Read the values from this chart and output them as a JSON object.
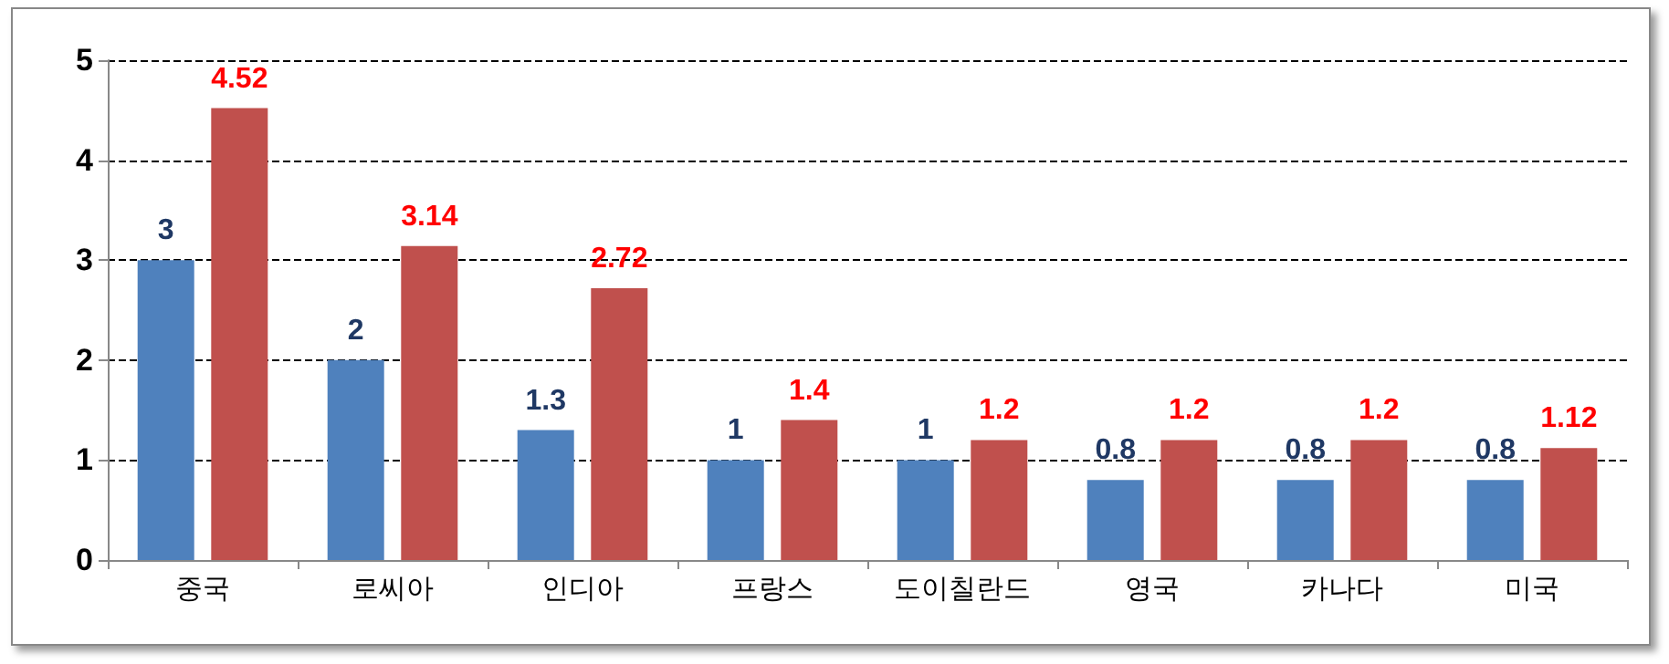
{
  "chart_data": {
    "type": "bar",
    "categories": [
      "중국",
      "로씨아",
      "인디아",
      "프랑스",
      "도이칠란드",
      "영국",
      "카나다",
      "미국"
    ],
    "series": [
      {
        "color": "#4f81bd",
        "values": [
          3,
          2,
          1.3,
          1,
          1,
          0.8,
          0.8,
          0.8
        ]
      },
      {
        "color": "#c0504d",
        "values": [
          4.52,
          3.14,
          2.72,
          1.4,
          1.2,
          1.2,
          1.2,
          1.12
        ]
      }
    ],
    "ylim": [
      0,
      5
    ],
    "yticks": [
      0,
      1,
      2,
      3,
      4,
      5
    ],
    "grid": "y",
    "data_labels": true
  }
}
